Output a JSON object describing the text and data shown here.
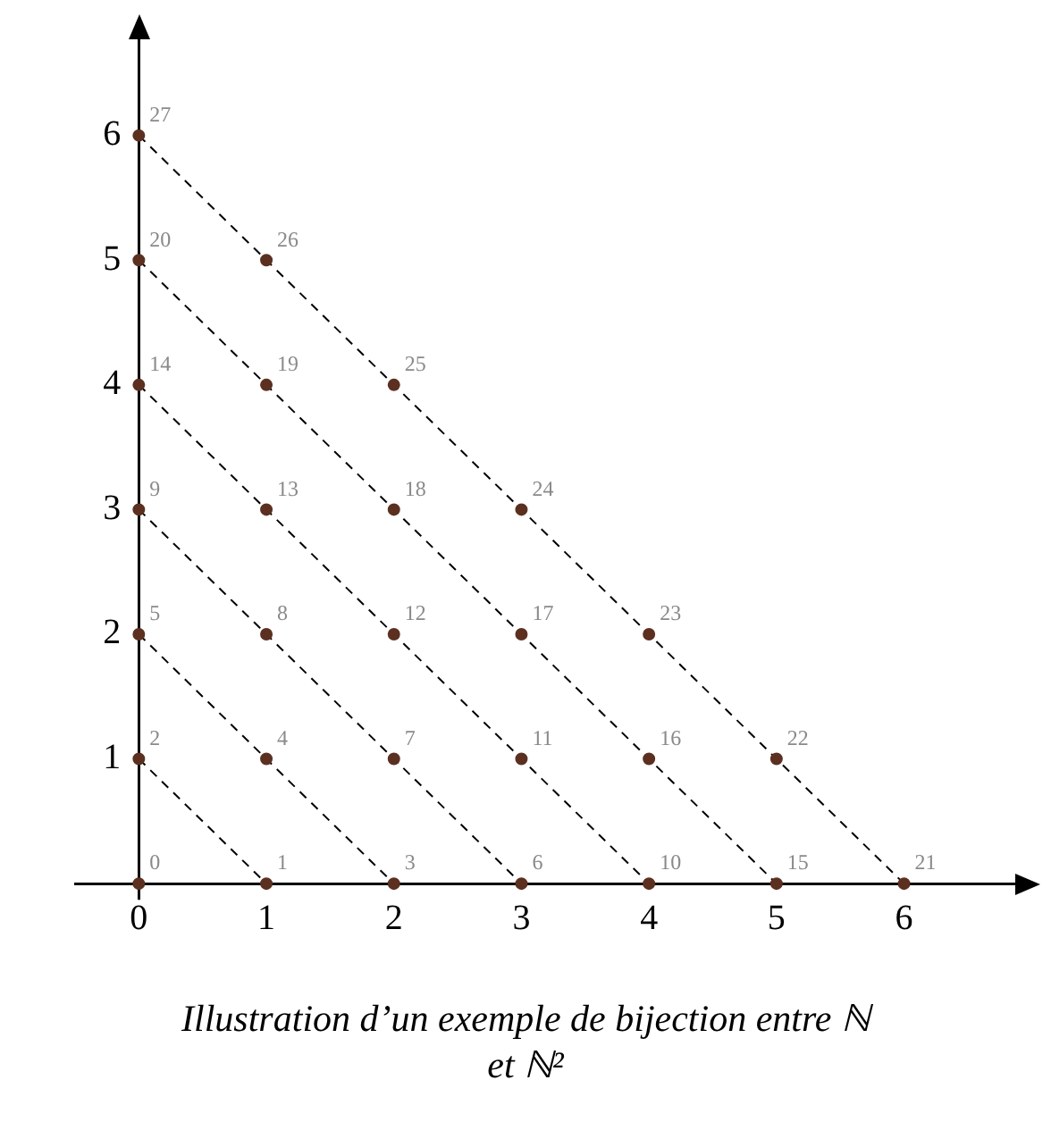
{
  "chart_data": {
    "type": "scatter",
    "title": "Illustration d’un exemple de bijection entre ℕ et ℕ²",
    "xlim": [
      -0.5,
      6.9
    ],
    "ylim": [
      -0.35,
      6.8
    ],
    "xticks": [
      0,
      1,
      2,
      3,
      4,
      5,
      6
    ],
    "yticks": [
      1,
      2,
      3,
      4,
      5,
      6
    ],
    "grid": false,
    "legend": false,
    "marker": "circle",
    "series": [
      {
        "color": "#5c3020",
        "x": [
          0,
          1,
          0,
          2,
          1,
          0,
          3,
          2,
          1,
          0,
          4,
          3,
          2,
          1,
          0,
          5,
          4,
          3,
          2,
          1,
          0,
          6,
          5,
          4,
          3,
          2,
          1,
          0
        ],
        "values": [
          0,
          0,
          1,
          0,
          1,
          2,
          0,
          1,
          2,
          3,
          0,
          1,
          2,
          3,
          4,
          0,
          1,
          2,
          3,
          4,
          5,
          0,
          1,
          2,
          3,
          4,
          5,
          6
        ]
      },
      {
        "type": "line",
        "color": "#000000",
        "line_style": "dashed",
        "marker": "none",
        "x": [
          0,
          1
        ],
        "values": [
          1,
          0
        ]
      },
      {
        "type": "line",
        "color": "#000000",
        "line_style": "dashed",
        "marker": "none",
        "x": [
          0,
          2
        ],
        "values": [
          2,
          0
        ]
      },
      {
        "type": "line",
        "color": "#000000",
        "line_style": "dashed",
        "marker": "none",
        "x": [
          0,
          3
        ],
        "values": [
          3,
          0
        ]
      },
      {
        "type": "line",
        "color": "#000000",
        "line_style": "dashed",
        "marker": "none",
        "x": [
          0,
          4
        ],
        "values": [
          4,
          0
        ]
      },
      {
        "type": "line",
        "color": "#000000",
        "line_style": "dashed",
        "marker": "none",
        "x": [
          0,
          5
        ],
        "values": [
          5,
          0
        ]
      },
      {
        "type": "line",
        "color": "#000000",
        "line_style": "dashed",
        "marker": "none",
        "x": [
          0,
          6
        ],
        "values": [
          6,
          0
        ]
      }
    ],
    "annotations": [
      {
        "text": "0",
        "x": 0,
        "y": 0
      },
      {
        "text": "1",
        "x": 1,
        "y": 0
      },
      {
        "text": "2",
        "x": 0,
        "y": 1
      },
      {
        "text": "3",
        "x": 2,
        "y": 0
      },
      {
        "text": "4",
        "x": 1,
        "y": 1
      },
      {
        "text": "5",
        "x": 0,
        "y": 2
      },
      {
        "text": "6",
        "x": 3,
        "y": 0
      },
      {
        "text": "7",
        "x": 2,
        "y": 1
      },
      {
        "text": "8",
        "x": 1,
        "y": 2
      },
      {
        "text": "9",
        "x": 0,
        "y": 3
      },
      {
        "text": "10",
        "x": 4,
        "y": 0
      },
      {
        "text": "11",
        "x": 3,
        "y": 1
      },
      {
        "text": "12",
        "x": 2,
        "y": 2
      },
      {
        "text": "13",
        "x": 1,
        "y": 3
      },
      {
        "text": "14",
        "x": 0,
        "y": 4
      },
      {
        "text": "15",
        "x": 5,
        "y": 0
      },
      {
        "text": "16",
        "x": 4,
        "y": 1
      },
      {
        "text": "17",
        "x": 3,
        "y": 2
      },
      {
        "text": "18",
        "x": 2,
        "y": 3
      },
      {
        "text": "19",
        "x": 1,
        "y": 4
      },
      {
        "text": "20",
        "x": 0,
        "y": 5
      },
      {
        "text": "21",
        "x": 6,
        "y": 0
      },
      {
        "text": "22",
        "x": 5,
        "y": 1
      },
      {
        "text": "23",
        "x": 4,
        "y": 2
      },
      {
        "text": "24",
        "x": 3,
        "y": 3
      },
      {
        "text": "25",
        "x": 2,
        "y": 4
      },
      {
        "text": "26",
        "x": 1,
        "y": 5
      },
      {
        "text": "27",
        "x": 0,
        "y": 6
      }
    ]
  }
}
